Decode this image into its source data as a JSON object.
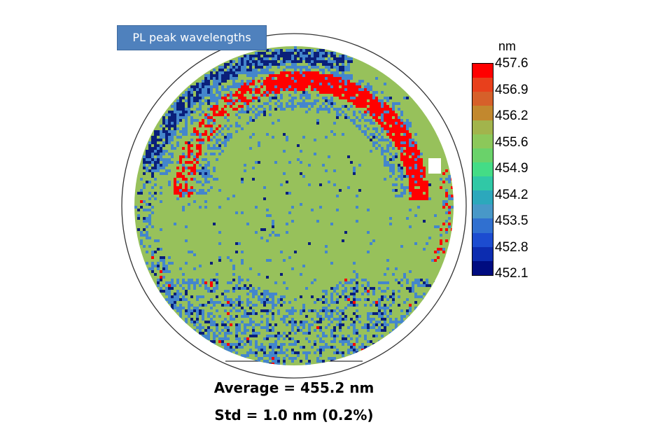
{
  "title": "PL peak wavelengths",
  "chart_data": {
    "type": "heatmap",
    "title": "PL peak wavelengths",
    "colorbar": {
      "unit": "nm",
      "min": 452.1,
      "max": 457.6,
      "tick_labels": [
        "457.6",
        "456.9",
        "456.2",
        "455.6",
        "454.9",
        "454.2",
        "453.5",
        "452.8",
        "452.1"
      ],
      "colors_top_to_bottom": [
        "#ff0000",
        "#e8401c",
        "#d6602a",
        "#c2882e",
        "#a2b44c",
        "#8cc85a",
        "#6ad26a",
        "#44dc86",
        "#30c8a6",
        "#2ca8bc",
        "#4898c8",
        "#3070d0",
        "#1c4cd0",
        "#0c2cb0",
        "#000c80"
      ]
    },
    "map_colors": {
      "baseline": "#97c15b",
      "low_band": "#4486cc",
      "very_low": "#0a1f7a",
      "high_band": "#ff0000"
    },
    "summary": {
      "average_label": "Average = 455.2 nm",
      "std_label": "Std = 1.0 nm (0.2%)"
    }
  }
}
